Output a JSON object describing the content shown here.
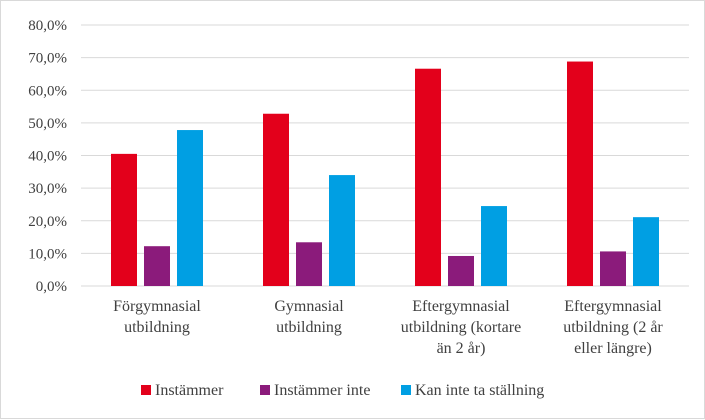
{
  "chart_data": {
    "type": "bar",
    "categories": [
      [
        "Förgymnasial",
        "utbildning"
      ],
      [
        "Gymnasial",
        "utbildning"
      ],
      [
        "Eftergymnasial",
        "utbildning (kortare",
        "än 2 år)"
      ],
      [
        "Eftergymnasial",
        "utbildning (2 år",
        "eller längre)"
      ]
    ],
    "series": [
      {
        "name": "Instämmer",
        "color": "#e3001b",
        "values": [
          40.5,
          52.8,
          66.6,
          68.8
        ]
      },
      {
        "name": "Instämmer inte",
        "color": "#8b1b7b",
        "values": [
          12.2,
          13.4,
          9.2,
          10.6
        ]
      },
      {
        "name": "Kan inte ta ställning",
        "color": "#009fe3",
        "values": [
          47.8,
          34.0,
          24.5,
          21.1
        ]
      }
    ],
    "yticks": [
      "0,0%",
      "10,0%",
      "20,0%",
      "30,0%",
      "40,0%",
      "50,0%",
      "60,0%",
      "70,0%",
      "80,0%"
    ],
    "ylim": [
      0,
      80
    ],
    "grid": true,
    "legend_position": "bottom",
    "title": "",
    "xlabel": "",
    "ylabel": ""
  }
}
